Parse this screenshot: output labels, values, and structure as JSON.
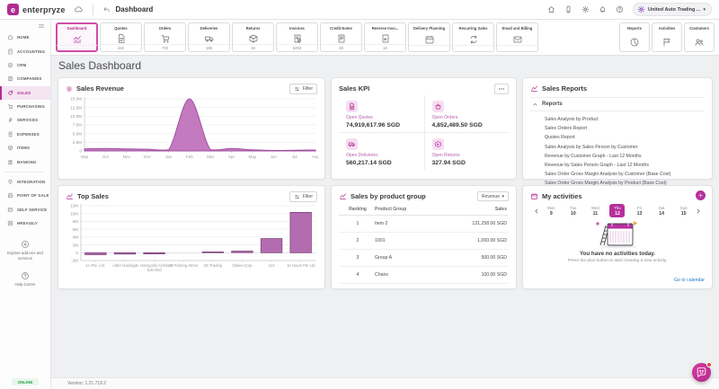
{
  "topbar": {
    "brand": "enterpryze",
    "page_title": "Dashboard",
    "company": "United Auto Trading ...",
    "nav_icons": [
      "home-icon",
      "mobile-icon",
      "settings-icon",
      "notifications-icon",
      "help-icon"
    ]
  },
  "sidebar": {
    "groups": [
      {
        "items": [
          {
            "label": "HOME",
            "icon": "home"
          },
          {
            "label": "ACCOUNTING",
            "icon": "calc"
          },
          {
            "label": "CRM",
            "icon": "crm"
          },
          {
            "label": "COMPANIES",
            "icon": "building"
          },
          {
            "label": "SALES",
            "icon": "tag",
            "active": true
          },
          {
            "label": "PURCHASING",
            "icon": "cart"
          },
          {
            "label": "SERVICES",
            "icon": "wrench"
          },
          {
            "label": "EXPENSES",
            "icon": "receipt"
          },
          {
            "label": "ITEMS",
            "icon": "box"
          },
          {
            "label": "BANKING",
            "icon": "bank"
          }
        ]
      },
      {
        "items": [
          {
            "label": "INTEGRATION",
            "icon": "plug"
          },
          {
            "label": "POINT OF SALE",
            "icon": "pos"
          },
          {
            "label": "SELF SERVICE",
            "icon": "card"
          },
          {
            "label": "HREASILY",
            "icon": "hr"
          }
        ]
      }
    ],
    "explore_label": "Explore add-ons and services",
    "help_label": "Help Centre",
    "status": "ONLINE"
  },
  "tabs": {
    "left": [
      {
        "label": "Dashboard",
        "icon": "chart",
        "count": "",
        "active": true
      },
      {
        "label": "Quotes",
        "icon": "doc",
        "count": "440"
      },
      {
        "label": "Orders",
        "icon": "cart",
        "count": "703"
      },
      {
        "label": "Deliveries",
        "icon": "truck",
        "count": "189"
      },
      {
        "label": "Returns",
        "icon": "box",
        "count": "16"
      },
      {
        "label": "Invoices",
        "icon": "invoice",
        "count": "5292"
      },
      {
        "label": "Credit Notes",
        "icon": "creditnote",
        "count": "28"
      },
      {
        "label": "Reverse Invo...",
        "icon": "reverse",
        "count": "16"
      },
      {
        "label": "Delivery Planning",
        "icon": "calendar",
        "count": ""
      },
      {
        "label": "Recurring Sales",
        "icon": "recurring",
        "count": ""
      },
      {
        "label": "Email and Billing",
        "icon": "mail",
        "count": ""
      }
    ],
    "right": [
      {
        "label": "Reports",
        "icon": "pie"
      },
      {
        "label": "Activities",
        "icon": "flag"
      },
      {
        "label": "Customers",
        "icon": "people"
      }
    ]
  },
  "page_heading": "Sales Dashboard",
  "panels": {
    "sales_revenue": {
      "title": "Sales Revenue",
      "filter_label": "Filter"
    },
    "sales_kpi": {
      "title": "Sales KPI",
      "items": [
        {
          "label": "Open Quotes",
          "value": "74,919,617.96 SGD",
          "icon": "doc"
        },
        {
          "label": "Open Orders",
          "value": "4,852,489.50 SGD",
          "icon": "basket"
        },
        {
          "label": "Open Deliveries",
          "value": "560,217.14 SGD",
          "icon": "truck"
        },
        {
          "label": "Open Returns",
          "value": "327.94 SGD",
          "icon": "return"
        }
      ]
    },
    "sales_reports": {
      "title": "Sales Reports",
      "group_label": "Reports",
      "items": [
        "Sales Analysis by Product",
        "Sales Orders Report",
        "Quotes Report",
        "Sales Analysis by Sales Person by Customer",
        "Revenue by Customer Graph - Last 12 Months",
        "Revenue by Sales Person Graph - Last 12 Months",
        "Sales Order Gross Margin Analysis by Customer (Base Cost)",
        "Sales Order Gross Margin Analysis by Product (Base Cost)"
      ]
    },
    "top_sales": {
      "title": "Top Sales",
      "filter_label": "Filter"
    },
    "product_group": {
      "title": "Sales by product group",
      "dropdown_label": "Revenue",
      "columns": [
        "Ranking",
        "Product Group",
        "Sales"
      ],
      "rows": [
        [
          "1",
          "Item 2",
          "131,258.00 SGD"
        ],
        [
          "2",
          "1001",
          "1,000.00 SGD"
        ],
        [
          "3",
          "Group A",
          "500.00 SGD"
        ],
        [
          "4",
          "Chairs",
          "100.00 SGD"
        ]
      ]
    },
    "activities": {
      "title": "My activities",
      "days": [
        {
          "name": "Mon",
          "num": "9"
        },
        {
          "name": "Tue",
          "num": "10"
        },
        {
          "name": "Wed",
          "num": "11"
        },
        {
          "name": "Thu",
          "num": "12",
          "selected": true
        },
        {
          "name": "Fri",
          "num": "13"
        },
        {
          "name": "Sat",
          "num": "14"
        },
        {
          "name": "Sun",
          "num": "15"
        }
      ],
      "empty_title": "You have no activities today.",
      "empty_subtitle": "Press the plus button to start creating a new activity.",
      "link_label": "Go to calendar"
    }
  },
  "chart_data": [
    {
      "type": "area",
      "title": "Sales Revenue",
      "x": [
        "Sep",
        "Oct",
        "Nov",
        "Dec",
        "Jan",
        "Feb",
        "Mar",
        "Apr",
        "May",
        "Jun",
        "Jul",
        "Aug"
      ],
      "values_millions": [
        0.6,
        0.7,
        0.6,
        0.5,
        0.3,
        15.0,
        0.35,
        0.7,
        0.3,
        0.12,
        0.2,
        0.25
      ],
      "ylim_millions": [
        0,
        15
      ],
      "ytick_values": [
        0,
        2.5,
        5,
        7.5,
        10,
        12.5,
        15
      ],
      "ytick_labels": [
        "0",
        "2.5M",
        "5.0M",
        "7.5M",
        "10.0M",
        "12.5M",
        "15.0M"
      ],
      "grid": true,
      "legend": false
    },
    {
      "type": "bar",
      "title": "Top Sales",
      "categories": [
        "1A Pte. Ltd.",
        "Adler Holdings",
        "A. Haregoski Architect Sdn Bhd",
        "18 Pahang Street",
        "3G Trading",
        "Oldew Corp",
        "123",
        "18 Hours Pte Ltd"
      ],
      "values_millions": [
        -0.5,
        -0.35,
        -0.3,
        0,
        0.2,
        0.4,
        3.6,
        10.3
      ],
      "ylim_millions": [
        -2,
        12
      ],
      "ytick_values": [
        -2,
        0,
        2,
        4,
        6,
        8,
        10,
        12
      ],
      "ytick_labels": [
        "-2M",
        "0",
        "2M",
        "4M",
        "6M",
        "8M",
        "10M",
        "12M"
      ],
      "grid": true,
      "legend": false
    }
  ],
  "footer": {
    "version": "Version: 1.21.719.2"
  },
  "colors": {
    "brand": "#b02d92",
    "chart_fill": "#bc6cb8",
    "chart_stroke": "#a250a0",
    "bar_fill": "#b36cb0",
    "bar_stroke": "#7d4579",
    "link": "#2079c3",
    "online": "#27a348"
  }
}
